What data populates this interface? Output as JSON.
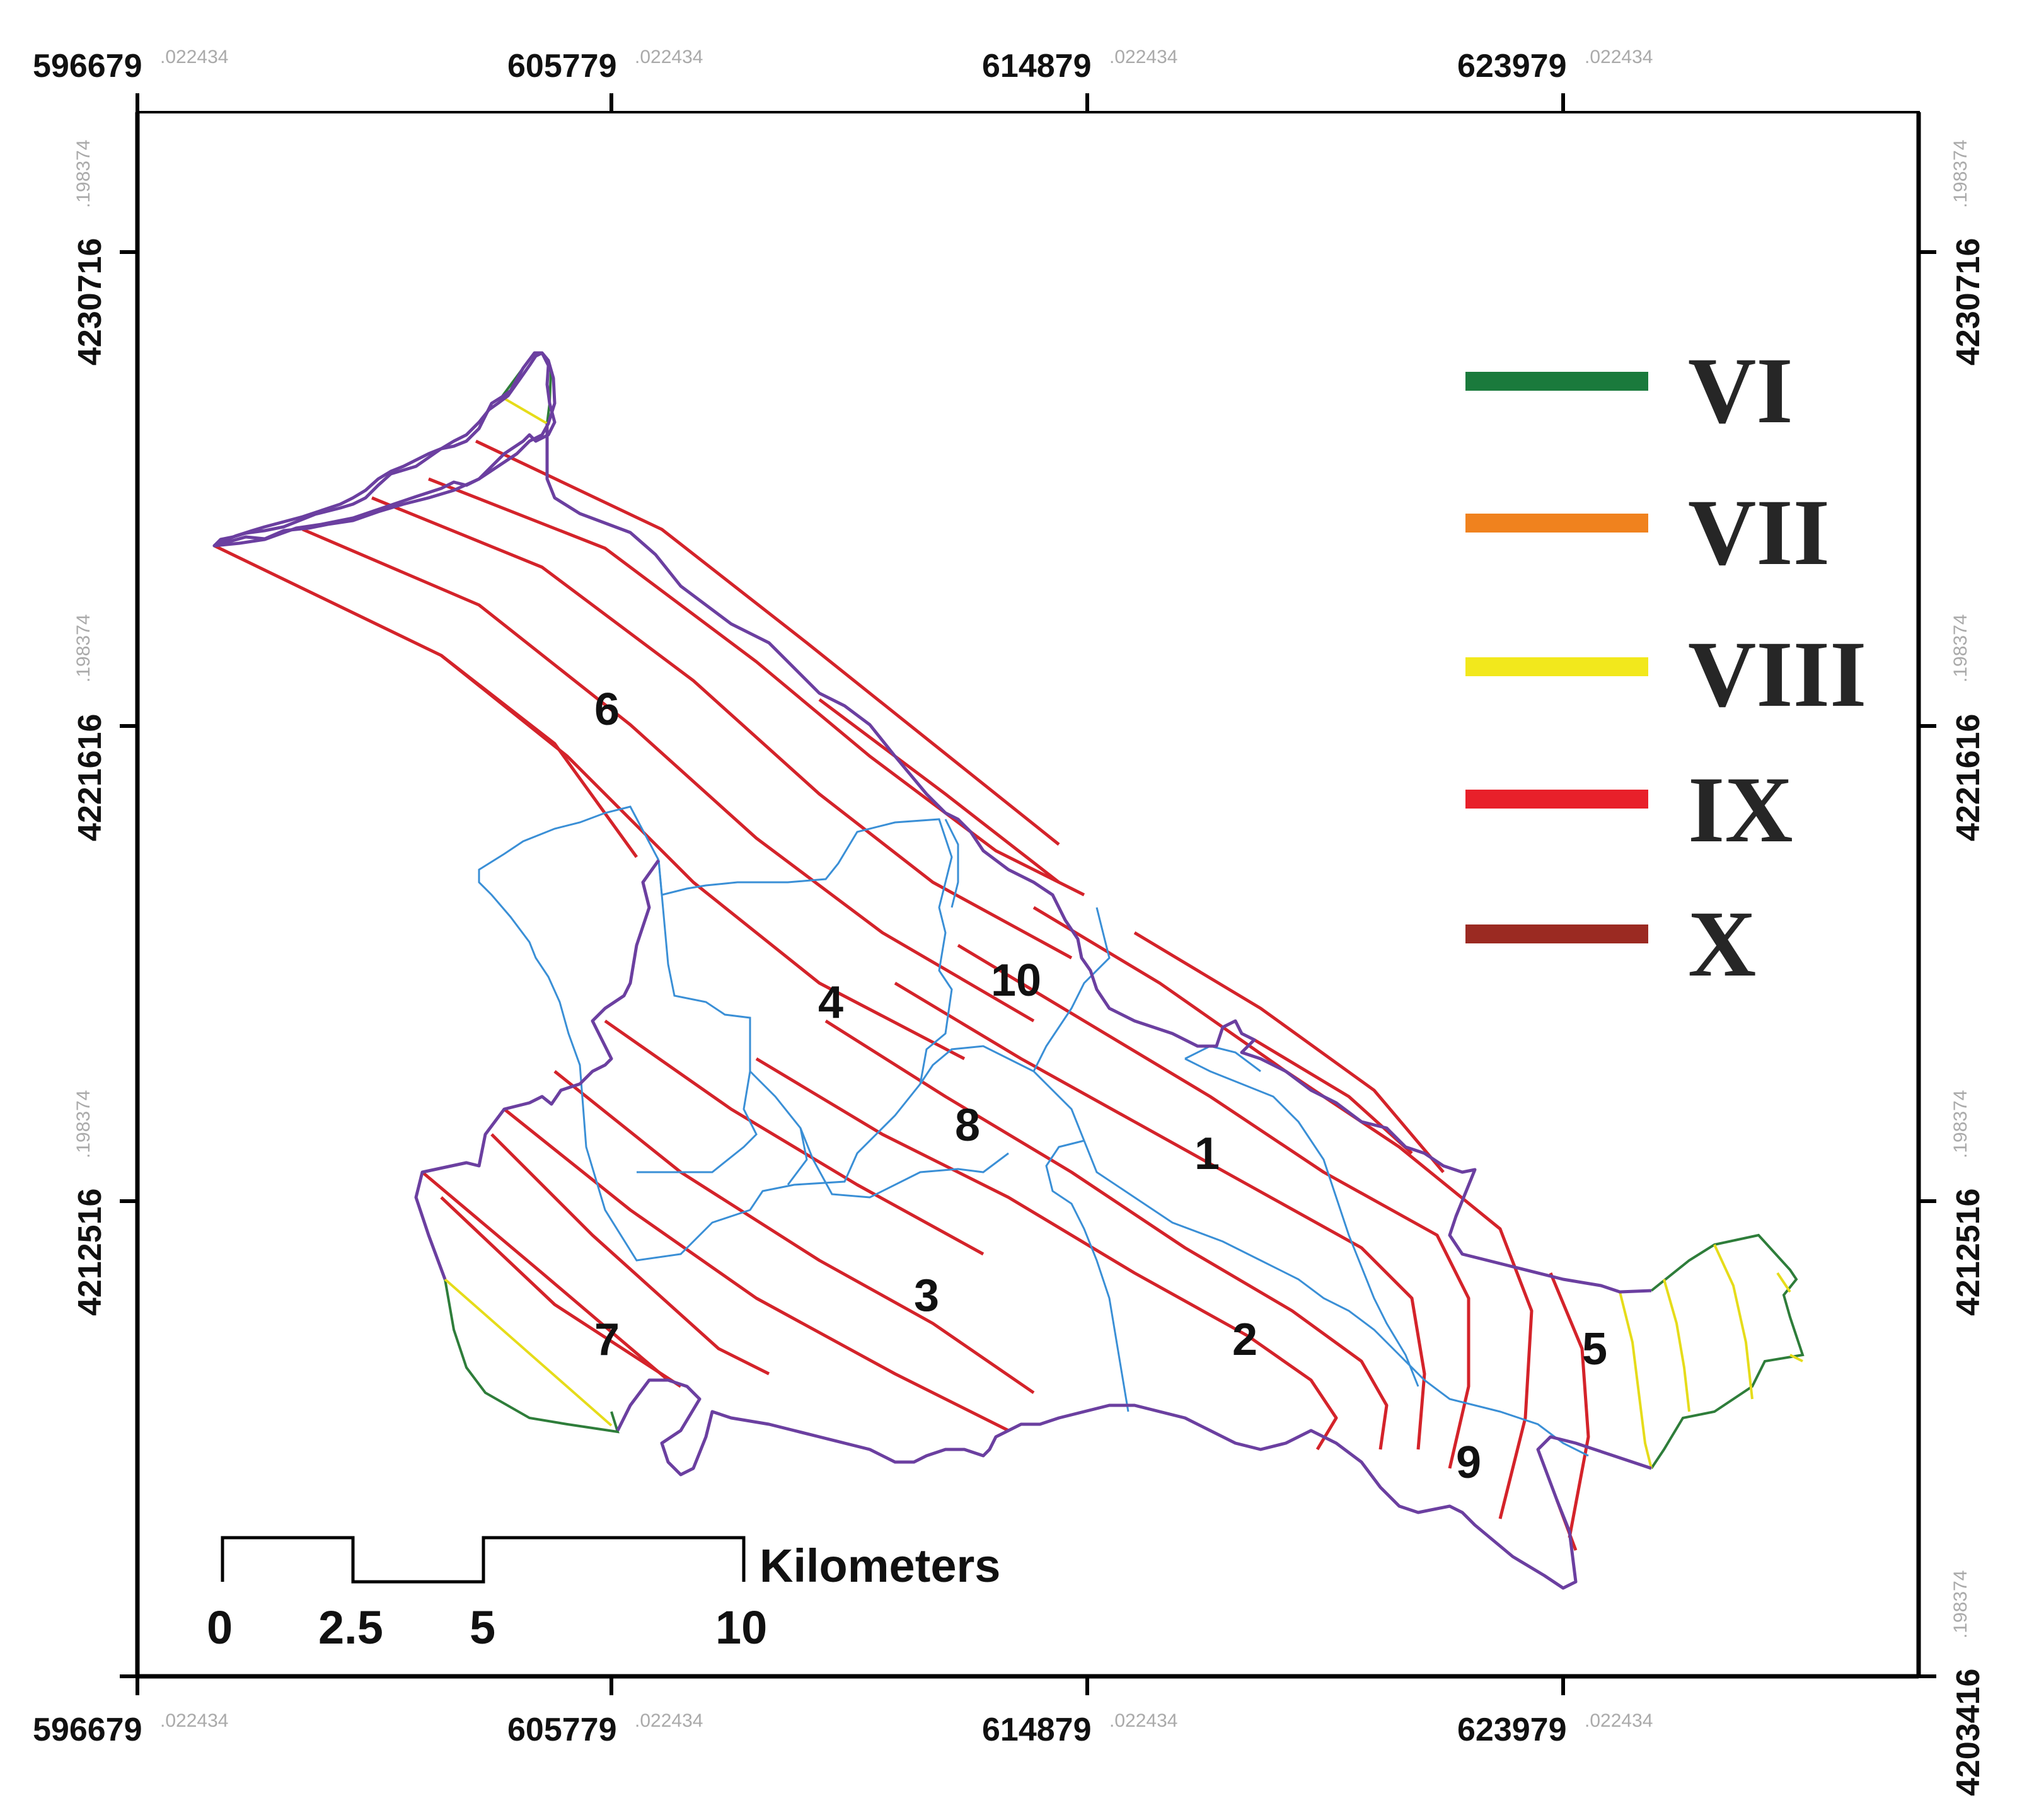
{
  "map": {
    "x_ticks": [
      {
        "main": "596679",
        "frac": ".022434"
      },
      {
        "main": "605779",
        "frac": ".022434"
      },
      {
        "main": "614879",
        "frac": ".022434"
      },
      {
        "main": "623979",
        "frac": ".022434"
      }
    ],
    "y_ticks": [
      {
        "main": "4230716",
        "frac": ".198374"
      },
      {
        "main": "4221616",
        "frac": ".198374"
      },
      {
        "main": "4212516",
        "frac": ".198374"
      },
      {
        "main": "4203416",
        "frac": ".198374"
      }
    ],
    "zone_labels": [
      "1",
      "2",
      "3",
      "4",
      "5",
      "6",
      "7",
      "8",
      "9",
      "10"
    ],
    "legend": [
      {
        "label": "VI",
        "color": "#1a7a3c"
      },
      {
        "label": "VII",
        "color": "#f0821e"
      },
      {
        "label": "VIII",
        "color": "#f2e81c"
      },
      {
        "label": "IX",
        "color": "#e8202a"
      },
      {
        "label": "X",
        "color": "#9b2a22"
      }
    ],
    "scale_bar": {
      "unit": "Kilometers",
      "labels": [
        "0",
        "2.5",
        "5",
        "10"
      ]
    },
    "colors": {
      "boundary": "#6b3fa0",
      "isoseismal_ix": "#d4232a",
      "isoseismal_viii": "#e6dc1a",
      "outer_vi": "#2e7d3a",
      "subbasin": "#3a8fd6"
    }
  }
}
